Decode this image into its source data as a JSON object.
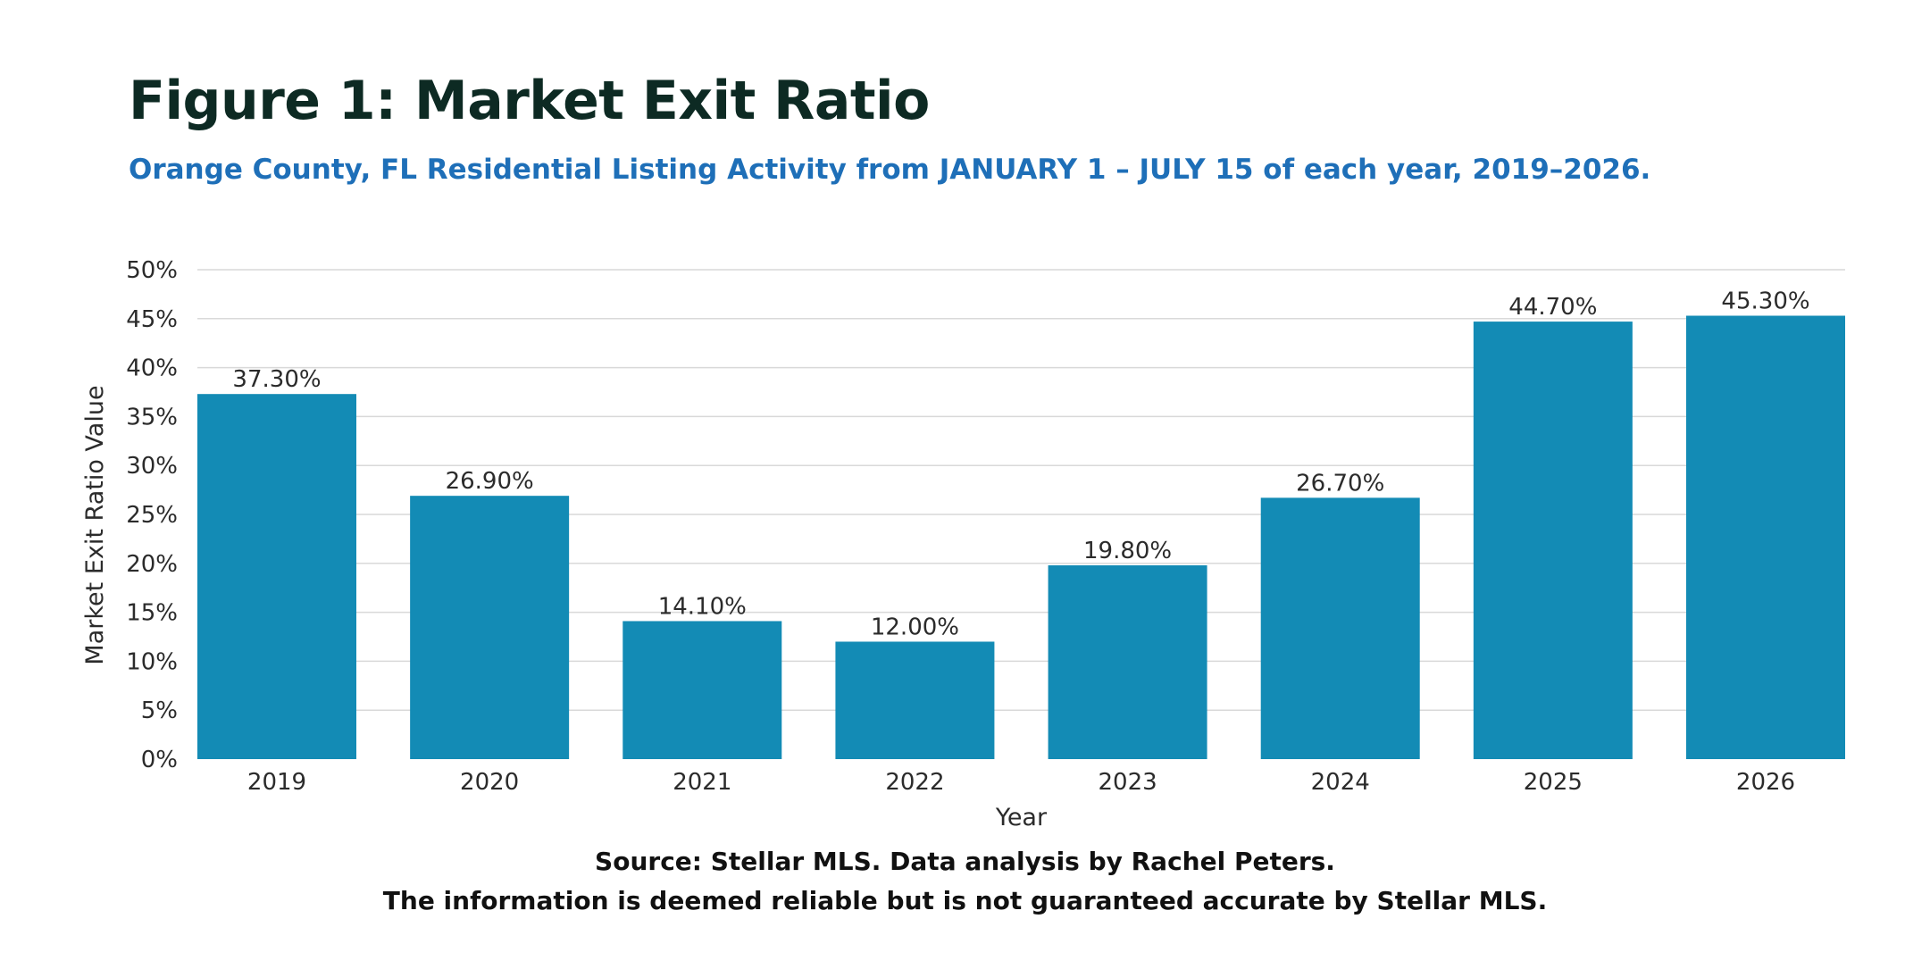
{
  "title": "Figure 1: Market Exit Ratio",
  "subtitle": "Orange County, FL Residential Listing Activity from JANUARY 1 – JULY 15 of each year, 2019–2026.",
  "source_line1": "Source: Stellar MLS. Data analysis by Rachel Peters.",
  "source_line2": "The information is deemed reliable but is not guaranteed accurate by Stellar MLS.",
  "colors": {
    "bar": "#138bb5",
    "grid": "#d9d9d9",
    "title": "#0d2a23",
    "subtitle": "#1e6fb8"
  },
  "chart_data": {
    "type": "bar",
    "categories": [
      "2019",
      "2020",
      "2021",
      "2022",
      "2023",
      "2024",
      "2025",
      "2026"
    ],
    "values": [
      37.3,
      26.9,
      14.1,
      12.0,
      19.8,
      26.7,
      44.7,
      45.3
    ],
    "value_labels": [
      "37.30%",
      "26.90%",
      "14.10%",
      "12.00%",
      "19.80%",
      "26.70%",
      "44.70%",
      "45.30%"
    ],
    "xlabel": "Year",
    "ylabel": "Market Exit Ratio Value",
    "ylim": [
      0,
      50
    ],
    "yticks": [
      0,
      5,
      10,
      15,
      20,
      25,
      30,
      35,
      40,
      45,
      50
    ],
    "ytick_labels": [
      "0%",
      "5%",
      "10%",
      "15%",
      "20%",
      "25%",
      "30%",
      "35%",
      "40%",
      "45%",
      "50%"
    ],
    "grid": true,
    "legend": "none"
  }
}
